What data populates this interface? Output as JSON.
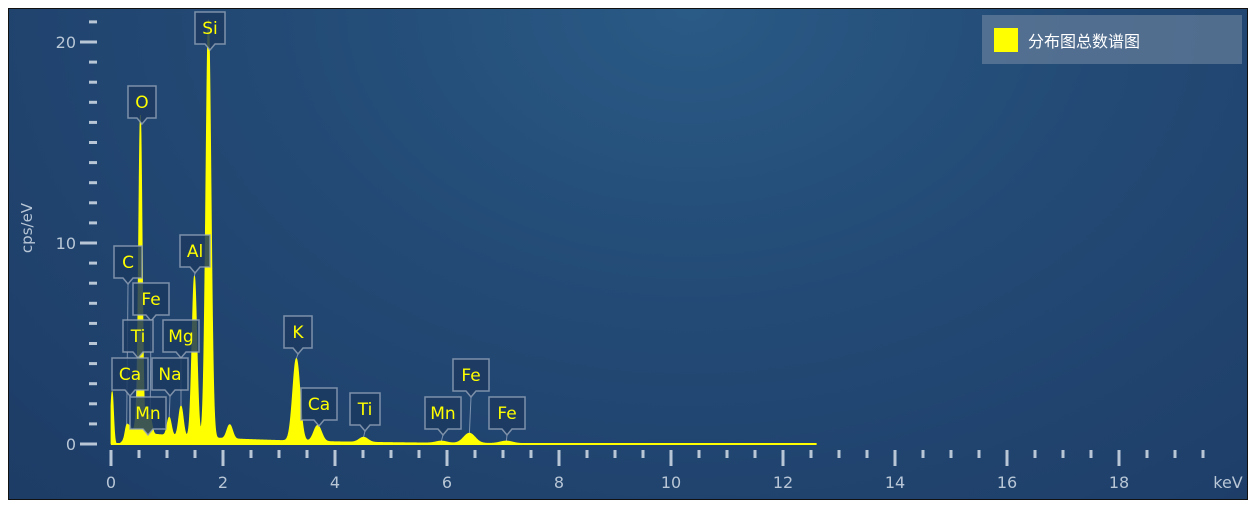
{
  "chart_data": {
    "type": "line",
    "title": "",
    "xlabel": "keV",
    "ylabel": "cps/eV",
    "xlim": [
      0,
      20
    ],
    "ylim": [
      0,
      21
    ],
    "x_ticks": [
      "0",
      "2",
      "4",
      "6",
      "8",
      "10",
      "12",
      "14",
      "16",
      "18"
    ],
    "y_ticks": [
      "0",
      "10",
      "20"
    ],
    "grid": false,
    "legend": {
      "position": "top-right",
      "entries": [
        {
          "name": "分布图总数谱图",
          "color": "#ffff00"
        }
      ]
    },
    "series": [
      {
        "name": "分布图总数谱图",
        "color": "#ffff00"
      }
    ],
    "peaks": [
      {
        "element": "Si",
        "energy": 1.74,
        "height": 20.8
      },
      {
        "element": "O",
        "energy": 0.525,
        "height": 15.8
      },
      {
        "element": "C",
        "energy": 0.28,
        "height": 0.6
      },
      {
        "element": "Fe",
        "energy": 0.7,
        "height": 0.8
      },
      {
        "element": "Ti",
        "energy": 0.45,
        "height": 0.5
      },
      {
        "element": "Mg",
        "energy": 1.25,
        "height": 1.5
      },
      {
        "element": "Ca",
        "energy": 0.34,
        "height": 0.4
      },
      {
        "element": "Na",
        "energy": 1.04,
        "height": 0.9
      },
      {
        "element": "Mn",
        "energy": 0.64,
        "height": 0.6
      },
      {
        "element": "Al",
        "energy": 1.49,
        "height": 8.0
      },
      {
        "element": "K",
        "energy": 3.31,
        "height": 4.1
      },
      {
        "element": "Ca",
        "energy": 3.69,
        "height": 0.8
      },
      {
        "element": "Ti",
        "energy": 4.51,
        "height": 0.25
      },
      {
        "element": "Mn",
        "energy": 5.9,
        "height": 0.1
      },
      {
        "element": "Fe",
        "energy": 6.4,
        "height": 0.5
      },
      {
        "element": "Fe",
        "energy": 7.06,
        "height": 0.12
      }
    ],
    "unlabeled_peaks": [
      {
        "energy": 0.02,
        "height": 2.6
      },
      {
        "energy": 2.12,
        "height": 0.7
      }
    ]
  },
  "colors": {
    "series": "#ffff00",
    "axis": "#b8c6d6",
    "label_box": "#1c3a60"
  }
}
